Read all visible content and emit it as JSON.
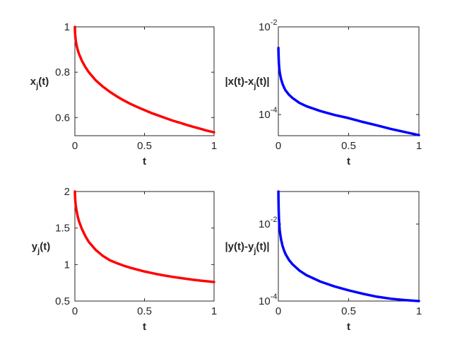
{
  "chart_data": [
    {
      "type": "line",
      "xlabel": "t",
      "ylabel_parts": {
        "pre": "x",
        "sub": "j",
        "post": "(t)"
      },
      "xlim": [
        0,
        1
      ],
      "ylim": [
        0.52,
        1.0
      ],
      "yscale": "linear",
      "xticks": [
        {
          "v": 0,
          "label": "0"
        },
        {
          "v": 0.5,
          "label": "0.5"
        },
        {
          "v": 1,
          "label": "1"
        }
      ],
      "yticks": [
        {
          "v": 0.6,
          "label": "0.6"
        },
        {
          "v": 0.8,
          "label": "0.8"
        },
        {
          "v": 1,
          "label": "1"
        }
      ],
      "grid": false,
      "series": [
        {
          "color": "#ff0000",
          "x": [
            0,
            0.001,
            0.005,
            0.01,
            0.02,
            0.03,
            0.05,
            0.075,
            0.1,
            0.15,
            0.2,
            0.25,
            0.3,
            0.35,
            0.4,
            0.45,
            0.5,
            0.55,
            0.6,
            0.65,
            0.7,
            0.75,
            0.8,
            0.85,
            0.9,
            0.95,
            1.0
          ],
          "y": [
            1.0,
            0.975,
            0.945,
            0.925,
            0.899,
            0.88,
            0.851,
            0.823,
            0.8,
            0.764,
            0.737,
            0.714,
            0.694,
            0.676,
            0.66,
            0.646,
            0.633,
            0.62,
            0.609,
            0.598,
            0.587,
            0.578,
            0.568,
            0.559,
            0.551,
            0.542,
            0.535
          ]
        }
      ]
    },
    {
      "type": "line",
      "xlabel": "t",
      "ylabel_parts": {
        "pre": "|x(t)-x",
        "sub": "j",
        "post": "(t)|"
      },
      "xlim": [
        0,
        1
      ],
      "ylim": [
        3.3e-05,
        0.01
      ],
      "yscale": "log",
      "xticks": [
        {
          "v": 0,
          "label": "0"
        },
        {
          "v": 0.5,
          "label": "0.5"
        },
        {
          "v": 1,
          "label": "1"
        }
      ],
      "yticks": [
        {
          "v": 0.0001,
          "base": "10",
          "exp": "-4"
        },
        {
          "v": 0.01,
          "base": "10",
          "exp": "-2"
        }
      ],
      "grid": false,
      "series": [
        {
          "color": "#0000ff",
          "x": [
            0.0005,
            0.001,
            0.002,
            0.003,
            0.005,
            0.0075,
            0.01,
            0.015,
            0.02,
            0.03,
            0.04,
            0.05,
            0.075,
            0.1,
            0.15,
            0.2,
            0.3,
            0.4,
            0.5,
            0.6,
            0.7,
            0.8,
            0.9,
            1.0
          ],
          "y": [
            0.0033,
            0.0027,
            0.0021,
            0.0017,
            0.00132,
            0.00107,
            0.00092,
            0.00075,
            0.00064,
            0.0005,
            0.00042,
            0.00036,
            0.000285,
            0.00024,
            0.000185,
            0.000155,
            0.00012,
            9.8e-05,
            8.3e-05,
            6.8e-05,
            5.7e-05,
            4.7e-05,
            4e-05,
            3.4e-05
          ]
        }
      ]
    },
    {
      "type": "line",
      "xlabel": "t",
      "ylabel_parts": {
        "pre": "y",
        "sub": "j",
        "post": "(t)"
      },
      "xlim": [
        0,
        1
      ],
      "ylim": [
        0.5,
        2.0
      ],
      "yscale": "linear",
      "xticks": [
        {
          "v": 0,
          "label": "0"
        },
        {
          "v": 0.5,
          "label": "0.5"
        },
        {
          "v": 1,
          "label": "1"
        }
      ],
      "yticks": [
        {
          "v": 0.5,
          "label": "0.5"
        },
        {
          "v": 1,
          "label": "1"
        },
        {
          "v": 1.5,
          "label": "1.5"
        },
        {
          "v": 2,
          "label": "2"
        }
      ],
      "grid": false,
      "series": [
        {
          "color": "#ff0000",
          "x": [
            0,
            0.002,
            0.005,
            0.01,
            0.02,
            0.03,
            0.05,
            0.075,
            0.1,
            0.15,
            0.2,
            0.25,
            0.3,
            0.35,
            0.4,
            0.45,
            0.5,
            0.55,
            0.6,
            0.65,
            0.7,
            0.75,
            0.8,
            0.85,
            0.9,
            0.95,
            1.0
          ],
          "y": [
            2.0,
            1.9,
            1.83,
            1.76,
            1.66,
            1.59,
            1.49,
            1.39,
            1.31,
            1.2,
            1.12,
            1.06,
            1.02,
            0.985,
            0.955,
            0.93,
            0.905,
            0.885,
            0.865,
            0.848,
            0.832,
            0.818,
            0.805,
            0.792,
            0.781,
            0.771,
            0.761
          ]
        }
      ]
    },
    {
      "type": "line",
      "xlabel": "t",
      "ylabel_parts": {
        "pre": "|y(t)-y",
        "sub": "j",
        "post": "(t)|"
      },
      "xlim": [
        0,
        1
      ],
      "ylim": [
        0.0001,
        0.07
      ],
      "yscale": "log",
      "xticks": [
        {
          "v": 0,
          "label": "0"
        },
        {
          "v": 0.5,
          "label": "0.5"
        },
        {
          "v": 1,
          "label": "1"
        }
      ],
      "yticks": [
        {
          "v": 0.0001,
          "base": "10",
          "exp": "-4"
        },
        {
          "v": 0.01,
          "base": "10",
          "exp": "-2"
        }
      ],
      "grid": false,
      "series": [
        {
          "color": "#0000ff",
          "x": [
            0.0005,
            0.001,
            0.002,
            0.003,
            0.005,
            0.0075,
            0.01,
            0.015,
            0.02,
            0.03,
            0.04,
            0.05,
            0.075,
            0.1,
            0.15,
            0.2,
            0.3,
            0.4,
            0.5,
            0.6,
            0.7,
            0.8,
            0.9,
            1.0
          ],
          "y": [
            0.07,
            0.045,
            0.028,
            0.02,
            0.0125,
            0.009,
            0.0068,
            0.005,
            0.0039,
            0.0027,
            0.0021,
            0.0017,
            0.00118,
            0.00091,
            0.00062,
            0.00047,
            0.00032,
            0.00024,
            0.00019,
            0.000155,
            0.00013,
            0.000115,
            0.000106,
            0.0001
          ]
        }
      ]
    }
  ]
}
